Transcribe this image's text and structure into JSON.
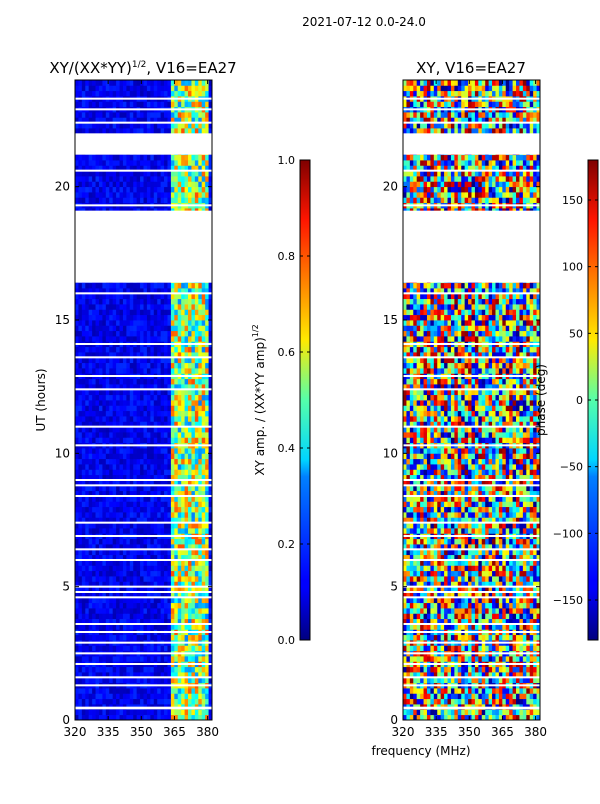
{
  "figure": {
    "suptitle": "2021-07-12 0.0-24.0"
  },
  "chart_data": [
    {
      "type": "heatmap",
      "title": "XY/(XX*YY)",
      "title_sup": "1/2",
      "title_suffix": ", V16=EA27",
      "xlabel": "",
      "ylabel": "UT (hours)",
      "xlim": [
        320,
        382
      ],
      "ylim": [
        0,
        24
      ],
      "xticks": [
        "320",
        "335",
        "350",
        "365",
        "380"
      ],
      "xtick_values": [
        320,
        335,
        350,
        365,
        380
      ],
      "yticks": [
        "0",
        "5",
        "10",
        "15",
        "20"
      ],
      "ytick_values": [
        0,
        5,
        10,
        15,
        20
      ],
      "colorbar": {
        "label": "XY amp. / (XX*YY amp)",
        "label_sup": "1/2",
        "range": [
          0.0,
          1.0
        ],
        "ticks": [
          "0.0",
          "0.2",
          "0.4",
          "0.6",
          "0.8",
          "1.0"
        ],
        "tick_values": [
          0.0,
          0.2,
          0.4,
          0.6,
          0.8,
          1.0
        ],
        "colormap": "jet"
      },
      "blank_time_ranges": [
        [
          16.4,
          19.1
        ],
        [
          21.2,
          22.0
        ],
        [
          0.4,
          0.5
        ]
      ],
      "high_value_freq_range": [
        363,
        380
      ]
    },
    {
      "type": "heatmap",
      "title": "XY, V16=EA27",
      "xlabel": "frequency (MHz)",
      "ylabel": "",
      "xlim": [
        320,
        382
      ],
      "ylim": [
        0,
        24
      ],
      "xticks": [
        "320",
        "335",
        "350",
        "365",
        "380"
      ],
      "xtick_values": [
        320,
        335,
        350,
        365,
        380
      ],
      "yticks": [
        "0",
        "5",
        "10",
        "15",
        "20"
      ],
      "ytick_values": [
        0,
        5,
        10,
        15,
        20
      ],
      "colorbar": {
        "label": "phase (deg)",
        "range": [
          -180,
          180
        ],
        "ticks": [
          "150",
          "100",
          "50",
          "0",
          "−50",
          "−100",
          "−150"
        ],
        "tick_values": [
          150,
          100,
          50,
          0,
          -50,
          -100,
          -150
        ],
        "colormap": "jet"
      },
      "blank_time_ranges": [
        [
          16.4,
          19.1
        ],
        [
          21.2,
          22.0
        ],
        [
          0.4,
          0.5
        ]
      ]
    }
  ]
}
